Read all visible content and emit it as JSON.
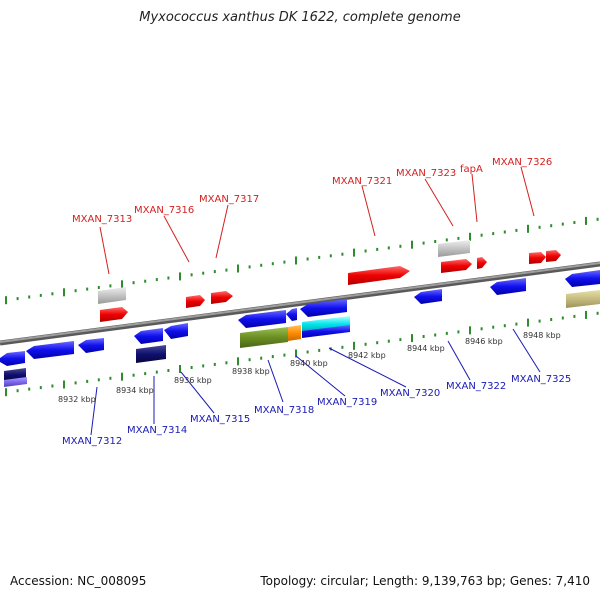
{
  "title": "Myxococcus xanthus DK 1622, complete genome",
  "footer": {
    "accession": "Accession: NC_008095",
    "summary": "Topology: circular; Length: 9,139,763 bp; Genes: 7,410"
  },
  "colors": {
    "top_label": "#d42020",
    "bottom_label": "#1a1ab4",
    "tick": "#2e8b2e",
    "backbone": "#808080"
  },
  "kbp_labels": [
    "8932 kbp",
    "8934 kbp",
    "8936 kbp",
    "8938 kbp",
    "8940 kbp",
    "8942 kbp",
    "8944 kbp",
    "8946 kbp",
    "8948 kbp"
  ],
  "top_genes": [
    "MXAN_7313",
    "MXAN_7316",
    "MXAN_7317",
    "MXAN_7321",
    "MXAN_7323",
    "fapA",
    "MXAN_7326"
  ],
  "bottom_genes": [
    "MXAN_7312",
    "MXAN_7314",
    "MXAN_7315",
    "MXAN_7318",
    "MXAN_7319",
    "MXAN_7320",
    "MXAN_7322",
    "MXAN_7325"
  ]
}
